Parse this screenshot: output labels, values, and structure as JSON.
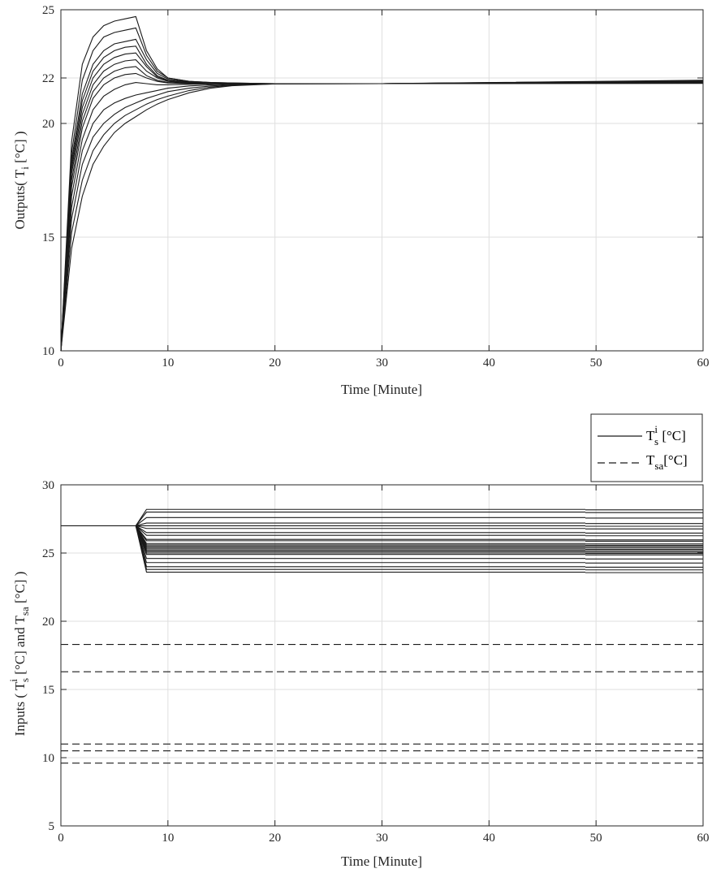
{
  "chart_data": [
    {
      "type": "line",
      "xlabel": "Time [Minute]",
      "ylabel": {
        "prefix": "Outputs( T",
        "sub": "i",
        "suffix": " [°C] )"
      },
      "xlim": [
        0,
        60
      ],
      "ylim": [
        10,
        25
      ],
      "xticks": [
        0,
        10,
        20,
        30,
        40,
        50,
        60
      ],
      "yticks": [
        10,
        15,
        20,
        22,
        25
      ],
      "grid": true,
      "series_style": "solid",
      "line_color": "#1a1a1a",
      "series": [
        {
          "x": [
            0,
            1,
            2,
            3,
            4,
            5,
            6,
            7,
            8,
            9,
            10,
            12,
            14,
            16,
            20,
            30,
            60
          ],
          "y": [
            10,
            19.2,
            22.6,
            23.8,
            24.3,
            24.5,
            24.6,
            24.7,
            23.2,
            22.4,
            22.0,
            21.85,
            21.8,
            21.78,
            21.75,
            21.75,
            21.8
          ]
        },
        {
          "x": [
            0,
            1,
            2,
            3,
            4,
            5,
            6,
            7,
            8,
            9,
            10,
            12,
            14,
            16,
            20,
            30,
            60
          ],
          "y": [
            10,
            18.7,
            21.9,
            23.2,
            23.8,
            24.0,
            24.1,
            24.2,
            23.0,
            22.3,
            22.0,
            21.85,
            21.8,
            21.78,
            21.75,
            21.75,
            21.82
          ]
        },
        {
          "x": [
            0,
            1,
            2,
            3,
            4,
            5,
            6,
            7,
            8,
            9,
            10,
            12,
            14,
            16,
            20,
            30,
            60
          ],
          "y": [
            10,
            18.4,
            21.3,
            22.6,
            23.2,
            23.5,
            23.6,
            23.7,
            22.8,
            22.2,
            21.95,
            21.82,
            21.78,
            21.76,
            21.75,
            21.75,
            21.85
          ]
        },
        {
          "x": [
            0,
            1,
            2,
            3,
            4,
            5,
            6,
            7,
            8,
            9,
            10,
            12,
            14,
            16,
            20,
            30,
            60
          ],
          "y": [
            10,
            18.2,
            21.0,
            22.3,
            22.9,
            23.2,
            23.35,
            23.4,
            22.6,
            22.1,
            21.9,
            21.8,
            21.77,
            21.75,
            21.75,
            21.75,
            21.78
          ]
        },
        {
          "x": [
            0,
            1,
            2,
            3,
            4,
            5,
            6,
            7,
            8,
            9,
            10,
            12,
            14,
            16,
            20,
            30,
            60
          ],
          "y": [
            10,
            18.0,
            20.7,
            22.0,
            22.6,
            22.9,
            23.05,
            23.1,
            22.5,
            22.05,
            21.88,
            21.8,
            21.77,
            21.75,
            21.75,
            21.75,
            21.9
          ]
        },
        {
          "x": [
            0,
            1,
            2,
            3,
            4,
            5,
            6,
            7,
            8,
            9,
            10,
            12,
            14,
            16,
            20,
            30,
            60
          ],
          "y": [
            10,
            17.8,
            20.4,
            21.7,
            22.3,
            22.6,
            22.75,
            22.8,
            22.3,
            22.0,
            21.85,
            21.78,
            21.76,
            21.75,
            21.75,
            21.75,
            21.82
          ]
        },
        {
          "x": [
            0,
            1,
            2,
            3,
            4,
            5,
            6,
            7,
            8,
            9,
            10,
            12,
            14,
            16,
            20,
            30,
            60
          ],
          "y": [
            10,
            17.5,
            20.1,
            21.4,
            22.0,
            22.3,
            22.45,
            22.5,
            22.1,
            21.9,
            21.8,
            21.76,
            21.75,
            21.75,
            21.75,
            21.75,
            21.76
          ]
        },
        {
          "x": [
            0,
            1,
            2,
            3,
            4,
            5,
            6,
            7,
            8,
            9,
            10,
            12,
            14,
            16,
            20,
            30,
            60
          ],
          "y": [
            10,
            17.2,
            19.8,
            21.1,
            21.7,
            22.0,
            22.15,
            22.2,
            22.0,
            21.85,
            21.78,
            21.75,
            21.75,
            21.75,
            21.75,
            21.75,
            21.88
          ]
        },
        {
          "x": [
            0,
            1,
            2,
            3,
            4,
            5,
            6,
            7,
            8,
            9,
            10,
            12,
            14,
            16,
            20,
            30,
            60
          ],
          "y": [
            10,
            16.8,
            19.3,
            20.6,
            21.2,
            21.5,
            21.7,
            21.8,
            21.75,
            21.7,
            21.7,
            21.72,
            21.74,
            21.75,
            21.75,
            21.75,
            21.8
          ]
        },
        {
          "x": [
            0,
            1,
            2,
            3,
            4,
            5,
            6,
            7,
            8,
            9,
            10,
            12,
            14,
            16,
            20,
            30,
            60
          ],
          "y": [
            10,
            16.3,
            18.8,
            20.0,
            20.6,
            20.9,
            21.1,
            21.25,
            21.35,
            21.45,
            21.55,
            21.65,
            21.7,
            21.73,
            21.75,
            21.75,
            21.84
          ]
        },
        {
          "x": [
            0,
            1,
            2,
            3,
            4,
            5,
            6,
            7,
            8,
            9,
            10,
            12,
            14,
            16,
            20,
            30,
            60
          ],
          "y": [
            10,
            15.8,
            18.2,
            19.4,
            20.0,
            20.4,
            20.7,
            20.9,
            21.1,
            21.25,
            21.4,
            21.55,
            21.65,
            21.7,
            21.75,
            21.75,
            21.78
          ]
        },
        {
          "x": [
            0,
            1,
            2,
            3,
            4,
            5,
            6,
            7,
            8,
            9,
            10,
            12,
            14,
            16,
            20,
            30,
            60
          ],
          "y": [
            10,
            15.2,
            17.5,
            18.8,
            19.5,
            20.0,
            20.35,
            20.6,
            20.85,
            21.05,
            21.2,
            21.45,
            21.6,
            21.68,
            21.74,
            21.75,
            21.86
          ]
        },
        {
          "x": [
            0,
            1,
            2,
            3,
            4,
            5,
            6,
            7,
            8,
            9,
            10,
            12,
            14,
            16,
            20,
            30,
            60
          ],
          "y": [
            10,
            14.5,
            16.8,
            18.2,
            19.0,
            19.6,
            20.0,
            20.3,
            20.6,
            20.85,
            21.05,
            21.35,
            21.55,
            21.66,
            21.74,
            21.75,
            21.8
          ]
        }
      ]
    },
    {
      "type": "line",
      "xlabel": "Time [Minute]",
      "ylabel": {
        "prefix": "Inputs ( T",
        "sub1": "s",
        "sup1": "i",
        "mid": " [°C] and T",
        "sub2": "sa",
        "suffix": " [°C] )"
      },
      "xlim": [
        0,
        60
      ],
      "ylim": [
        5,
        30
      ],
      "xticks": [
        0,
        10,
        20,
        30,
        40,
        50,
        60
      ],
      "yticks": [
        5,
        10,
        15,
        20,
        25,
        30
      ],
      "grid": true,
      "legend": {
        "placement": "outside-top-right",
        "entries": [
          {
            "style": "solid",
            "main": "T",
            "sub": "s",
            "sup": "i",
            "rest": " [°C]"
          },
          {
            "style": "dashed",
            "main": "T",
            "sub": "sa",
            "rest": "[°C]"
          }
        ]
      },
      "solid_series": {
        "name": "T_s^i [°C]",
        "initial_value": 27,
        "switch_time": 7,
        "settle_time": 8,
        "break_time": 49,
        "levels": [
          28.2,
          28.0,
          27.6,
          27.2,
          27.0,
          26.8,
          26.5,
          26.3,
          26.0,
          25.9,
          25.7,
          25.6,
          25.5,
          25.4,
          25.3,
          25.2,
          25.1,
          25.0,
          24.9,
          24.6,
          24.3,
          24.0,
          23.8,
          23.6
        ]
      },
      "dashed_series": {
        "name": "T_sa[°C]",
        "levels": [
          18.3,
          16.3,
          11.0,
          10.5,
          9.6
        ]
      }
    }
  ]
}
